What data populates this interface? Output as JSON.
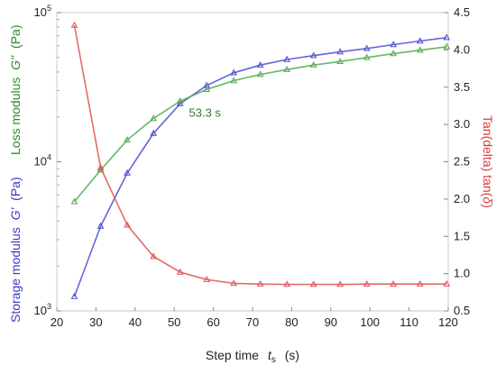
{
  "chart_data": {
    "type": "line",
    "xlabel": "Step time",
    "xlabel_symbol": "t",
    "xlabel_subscript": "s",
    "xlabel_unit": "(s)",
    "xlim": [
      20,
      120
    ],
    "x_ticks": [
      "20",
      "30",
      "40",
      "50",
      "60",
      "70",
      "80",
      "90",
      "100",
      "110",
      "120"
    ],
    "y_left": {
      "scale": "log",
      "lim": [
        1000,
        100000
      ],
      "ticks": [
        {
          "value": 1000,
          "base": "10",
          "exp": "3"
        },
        {
          "value": 10000,
          "base": "10",
          "exp": "4"
        },
        {
          "value": 100000,
          "base": "10",
          "exp": "5"
        }
      ],
      "label_storage": "Storage modulus",
      "label_storage_symbol": "G'",
      "label_storage_unit": "(Pa)",
      "label_loss": "Loss modulus",
      "label_loss_symbol": "G\"",
      "label_loss_unit": "(Pa)"
    },
    "y_right": {
      "scale": "linear",
      "lim": [
        0.5,
        4.5
      ],
      "ticks": [
        "0.5",
        "1.0",
        "1.5",
        "2.0",
        "2.5",
        "3.0",
        "3.5",
        "4.0",
        "4.5"
      ],
      "label": "Tan(delta) tan(",
      "label_symbol": "δ",
      "label_close": ")"
    },
    "annotation": {
      "text": "53.3 s",
      "x": 53.3,
      "y": 25000
    },
    "series": [
      {
        "key": "storage",
        "axis": "left",
        "color": "#4a4ad4",
        "x": [
          24.5,
          31.2,
          38,
          44.7,
          51.5,
          58.3,
          65.2,
          72,
          78.8,
          85.6,
          92.4,
          99.2,
          106,
          112.8,
          119.6
        ],
        "y": [
          1250,
          3700,
          8400,
          15500,
          24500,
          32500,
          39500,
          44500,
          48500,
          51500,
          54500,
          57500,
          61000,
          64500,
          68000
        ]
      },
      {
        "key": "loss",
        "axis": "left",
        "color": "#4caa4c",
        "x": [
          24.5,
          31.2,
          38,
          44.7,
          51.5,
          58.3,
          65.2,
          72,
          78.8,
          85.6,
          92.4,
          99.2,
          106,
          112.8,
          119.6
        ],
        "y": [
          5400,
          8800,
          14000,
          19500,
          25500,
          30500,
          35000,
          38500,
          41500,
          44500,
          47000,
          50000,
          53000,
          56000,
          59000
        ]
      },
      {
        "key": "tan_delta",
        "axis": "right",
        "color": "#e05050",
        "x": [
          24.5,
          31.2,
          38,
          44.7,
          51.5,
          58.3,
          65.2,
          72,
          78.8,
          85.6,
          92.4,
          99.2,
          106,
          112.8,
          119.6
        ],
        "y": [
          4.33,
          2.42,
          1.65,
          1.23,
          1.02,
          0.92,
          0.87,
          0.86,
          0.855,
          0.855,
          0.855,
          0.86,
          0.86,
          0.86,
          0.86
        ]
      }
    ],
    "grid": false,
    "legend": "none"
  }
}
